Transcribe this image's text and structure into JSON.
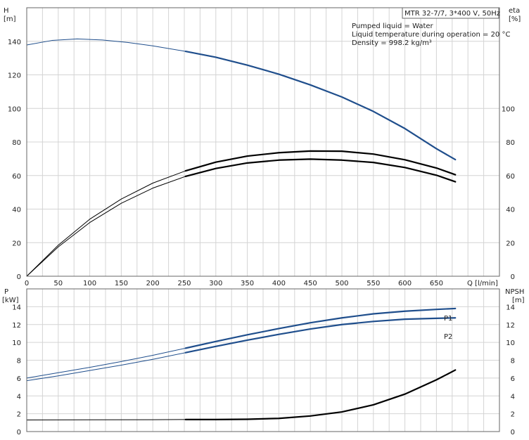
{
  "chart_data": [
    {
      "type": "line",
      "panel": "upper",
      "title": "MTR 32-7/7, 3*400 V, 50Hz",
      "info": [
        "Pumped liquid = Water",
        "Liquid temperature during operation = 20 °C",
        "Density = 998.2 kg/m³"
      ],
      "xlabel": "Q [l/min]",
      "ylabel_left": [
        "H",
        "[m]"
      ],
      "ylabel_right": [
        "eta",
        "[%]"
      ],
      "xlim": [
        0,
        750
      ],
      "ylim_left": [
        0,
        160
      ],
      "ylim_right": [
        0,
        160
      ],
      "x_ticks": [
        0,
        50,
        100,
        150,
        200,
        250,
        300,
        350,
        400,
        450,
        500,
        550,
        600,
        650
      ],
      "y_ticks_left": [
        0,
        20,
        40,
        60,
        80,
        100,
        120,
        140
      ],
      "y_ticks_right": [
        0,
        20,
        40,
        60,
        80,
        100
      ],
      "grid": true,
      "duty_start": 252,
      "series": [
        {
          "axis": "left",
          "color": "#1f4e8c",
          "x": [
            0,
            40,
            80,
            120,
            160,
            200,
            252,
            300,
            350,
            400,
            450,
            500,
            550,
            600,
            650,
            680
          ],
          "y": [
            137.8,
            140.5,
            141.4,
            140.8,
            139.3,
            137.3,
            134,
            130.5,
            125.8,
            120.4,
            114,
            106.8,
            98.2,
            88,
            76,
            69.5
          ]
        },
        {
          "axis": "right",
          "color": "#000000",
          "x": [
            0,
            50,
            100,
            150,
            200,
            252,
            300,
            350,
            400,
            450,
            500,
            550,
            600,
            650,
            680
          ],
          "y": [
            0,
            18.5,
            34,
            46,
            55.5,
            62.8,
            68,
            71.6,
            73.6,
            74.6,
            74.5,
            72.8,
            69.4,
            64.5,
            60.5
          ]
        },
        {
          "axis": "right",
          "color": "#000000",
          "x": [
            0,
            50,
            100,
            150,
            200,
            252,
            300,
            350,
            400,
            450,
            500,
            550,
            600,
            650,
            680
          ],
          "y": [
            0,
            17.5,
            32,
            43.5,
            52.5,
            59.5,
            64.2,
            67.5,
            69.2,
            69.8,
            69.2,
            67.8,
            64.8,
            60.2,
            56.3
          ]
        }
      ]
    },
    {
      "type": "line",
      "panel": "lower",
      "ylabel_left": [
        "P",
        "[kW]"
      ],
      "ylabel_right": [
        "NPSH",
        "[m]"
      ],
      "xlim": [
        0,
        750
      ],
      "ylim_left": [
        0,
        16
      ],
      "ylim_right": [
        0,
        16
      ],
      "y_ticks_left": [
        0,
        2,
        4,
        6,
        8,
        10,
        12,
        14
      ],
      "y_ticks_right": [
        0,
        2,
        4,
        6,
        8,
        10,
        12,
        14
      ],
      "grid": true,
      "duty_start": 252,
      "series": [
        {
          "name": "P1",
          "axis": "left",
          "color": "#1f4e8c",
          "x": [
            0,
            50,
            100,
            150,
            200,
            252,
            300,
            350,
            400,
            450,
            500,
            550,
            600,
            650,
            680
          ],
          "y": [
            6.0,
            6.6,
            7.2,
            7.85,
            8.55,
            9.35,
            10.1,
            10.85,
            11.55,
            12.2,
            12.75,
            13.2,
            13.5,
            13.7,
            13.8
          ]
        },
        {
          "name": "P2",
          "axis": "left",
          "color": "#1f4e8c",
          "x": [
            0,
            50,
            100,
            150,
            200,
            252,
            300,
            350,
            400,
            450,
            500,
            550,
            600,
            650,
            680
          ],
          "y": [
            5.7,
            6.25,
            6.85,
            7.45,
            8.1,
            8.85,
            9.55,
            10.25,
            10.9,
            11.5,
            12.0,
            12.35,
            12.6,
            12.7,
            12.75
          ]
        },
        {
          "axis": "right",
          "color": "#000000",
          "x": [
            0,
            100,
            200,
            252,
            300,
            350,
            400,
            450,
            500,
            550,
            600,
            650,
            680
          ],
          "y": [
            1.3,
            1.32,
            1.33,
            1.35,
            1.35,
            1.38,
            1.48,
            1.75,
            2.2,
            3.0,
            4.2,
            5.8,
            6.9
          ]
        }
      ]
    }
  ]
}
